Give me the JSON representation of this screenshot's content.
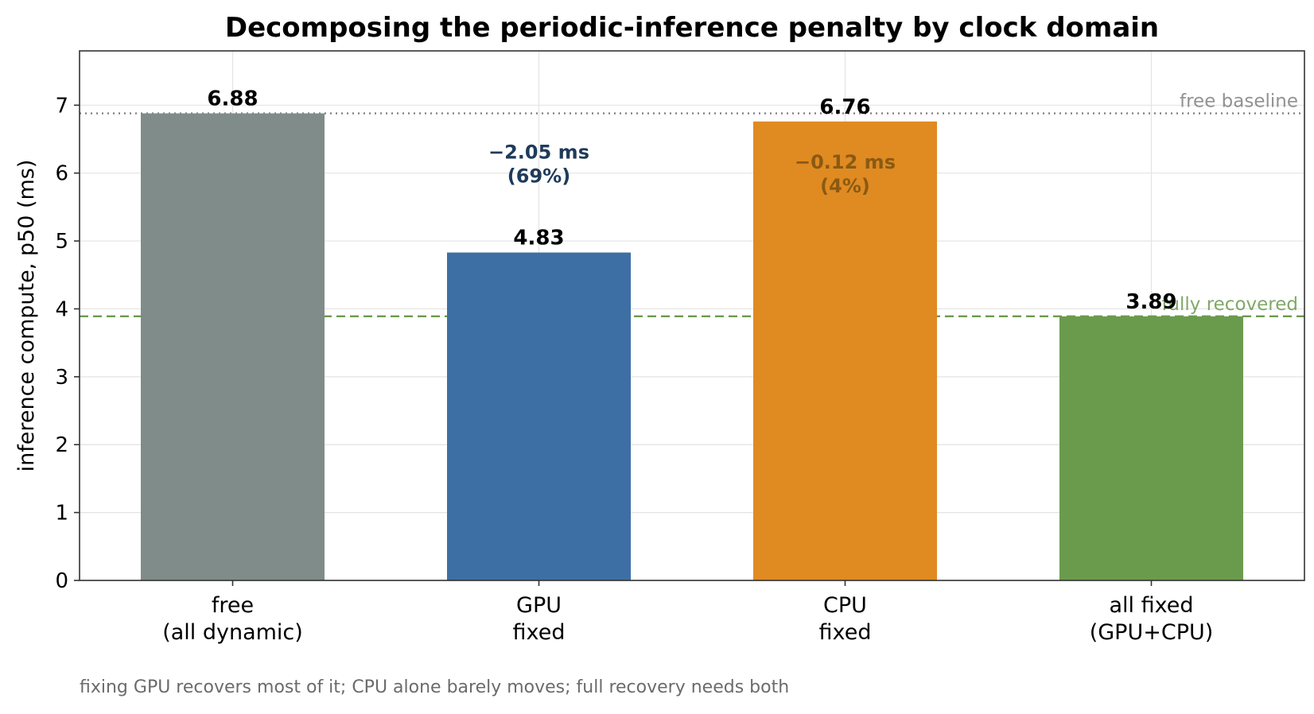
{
  "chart_data": {
    "type": "bar",
    "title": "Decomposing the periodic-inference penalty by clock domain",
    "xlabel": "",
    "ylabel": "inference compute, p50 (ms)",
    "ylim": [
      0,
      7.8
    ],
    "yticks": [
      0,
      1,
      2,
      3,
      4,
      5,
      6,
      7
    ],
    "grid": true,
    "categories": [
      {
        "line1": "free",
        "line2": "(all dynamic)"
      },
      {
        "line1": "GPU",
        "line2": "fixed"
      },
      {
        "line1": "CPU",
        "line2": "fixed"
      },
      {
        "line1": "all fixed",
        "line2": "(GPU+CPU)"
      }
    ],
    "values": [
      6.88,
      4.83,
      6.76,
      3.89
    ],
    "value_labels": [
      "6.88",
      "4.83",
      "6.76",
      "3.89"
    ],
    "colors": [
      "#7f8c8a",
      "#3d6fa5",
      "#e08a22",
      "#6a9b4d"
    ],
    "reference_lines": [
      {
        "label": "free baseline",
        "value": 6.88,
        "style": "dotted",
        "color": "#808080"
      },
      {
        "label": "fully recovered",
        "value": 3.89,
        "style": "dashed",
        "color": "#6a9b4d"
      }
    ],
    "annotations": [
      {
        "category_index": 1,
        "line1": "−2.05 ms",
        "line2": "(69%)",
        "color": "#1f3b5a",
        "y": 6.05
      },
      {
        "category_index": 2,
        "line1": "−0.12 ms",
        "line2": "(4%)",
        "color": "#8a5a12",
        "y": 5.9
      }
    ]
  },
  "footnote": "fixing GPU recovers most of it; CPU alone barely moves; full recovery needs both"
}
